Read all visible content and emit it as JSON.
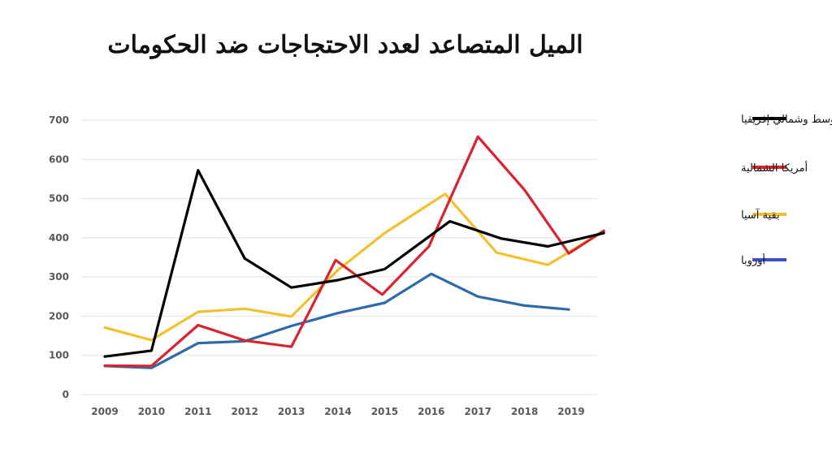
{
  "chart_data": {
    "type": "line",
    "title": "الميل المتصاعد لعدد الاحتجاجات ضد الحكومات",
    "xlabel": "",
    "ylabel": "",
    "ylim": [
      0,
      700
    ],
    "yticks": [
      0,
      100,
      200,
      300,
      400,
      500,
      600,
      700
    ],
    "categories": [
      "2009",
      "2010",
      "2011",
      "2012",
      "2013",
      "2014",
      "2015",
      "2016",
      "2017",
      "2018",
      "2019"
    ],
    "grid": "horizontal",
    "legend_position": "right",
    "series": [
      {
        "name": "الشرق الأوسط وشمالي إفريقيا",
        "color": "#000000",
        "points": [
          [
            2009,
            97
          ],
          [
            2010,
            112
          ],
          [
            2011,
            572
          ],
          [
            2012,
            347
          ],
          [
            2013,
            273
          ],
          [
            2014,
            292
          ],
          [
            2015,
            320
          ],
          [
            2016.4,
            442
          ],
          [
            2017.5,
            398
          ],
          [
            2018.5,
            378
          ],
          [
            2019.7,
            412
          ]
        ]
      },
      {
        "name": "أمريكا الشمالية",
        "color": "#d9242f",
        "points": [
          [
            2009,
            74
          ],
          [
            2010,
            73
          ],
          [
            2011,
            177
          ],
          [
            2012,
            138
          ],
          [
            2013,
            122
          ],
          [
            2013.95,
            343
          ],
          [
            2014.95,
            255
          ],
          [
            2015.95,
            378
          ],
          [
            2017,
            658
          ],
          [
            2018,
            522
          ],
          [
            2018.95,
            360
          ],
          [
            2019.7,
            418
          ]
        ]
      },
      {
        "name": "بقية آسيا",
        "color": "#f2c12e",
        "points": [
          [
            2009,
            171
          ],
          [
            2010,
            139
          ],
          [
            2011,
            211
          ],
          [
            2012,
            219
          ],
          [
            2013,
            199
          ],
          [
            2014,
            318
          ],
          [
            2015,
            412
          ],
          [
            2016.3,
            512
          ],
          [
            2017.4,
            362
          ],
          [
            2018.5,
            331
          ],
          [
            2019.7,
            417
          ]
        ]
      },
      {
        "name": "أوروبا",
        "color": "#2f6ba8",
        "points": [
          [
            2009,
            73
          ],
          [
            2010,
            68
          ],
          [
            2011,
            131
          ],
          [
            2012,
            136
          ],
          [
            2013,
            175
          ],
          [
            2014,
            208
          ],
          [
            2015,
            234
          ],
          [
            2016,
            308
          ],
          [
            2017,
            250
          ],
          [
            2018,
            227
          ],
          [
            2018.95,
            217
          ]
        ]
      }
    ]
  },
  "legend_colors": [
    "#000000",
    "#d9242f",
    "#f2c12e",
    "#3d4fd1"
  ]
}
